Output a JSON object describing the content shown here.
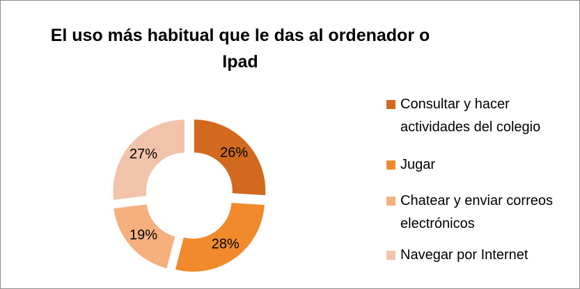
{
  "chart_data": {
    "type": "donut",
    "title": "El uso más habitual que le das al ordenador o Ipad",
    "categories": [
      "Consultar y hacer actividades del colegio",
      "Jugar",
      "Chatear y enviar correos electrónicos",
      "Navegar por Internet"
    ],
    "values": [
      26,
      28,
      19,
      27
    ],
    "value_labels": [
      "26%",
      "28%",
      "19%",
      "27%"
    ],
    "colors": [
      "#d2691e",
      "#f08a2c",
      "#f5b07e",
      "#f2c3ab"
    ],
    "legend": "right"
  }
}
